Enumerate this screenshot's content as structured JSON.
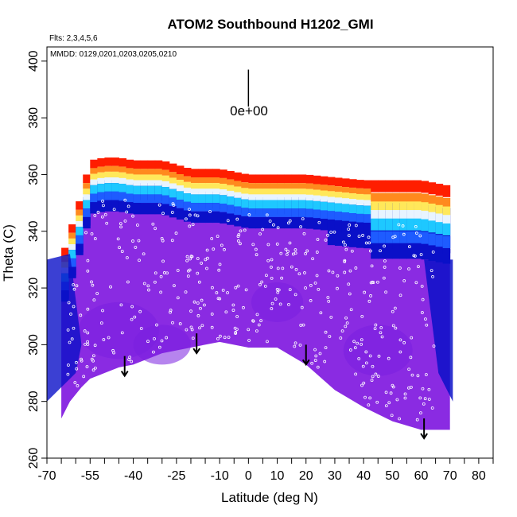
{
  "chart_data": {
    "type": "heatmap",
    "title": "ATOM2 Southbound H1202_GMI",
    "subtitle_flights": "Flts: 2,3,4,5,6",
    "subtitle_dates": "MMDD: 0129,0201,0203,0205,0210",
    "xlabel": "Latitude (deg N)",
    "ylabel": "Theta (C)",
    "xlim": [
      -70,
      85
    ],
    "ylim": [
      260,
      405
    ],
    "x_tick_labels": [
      "-70",
      "-55",
      "-40",
      "-25",
      "-10",
      "0",
      "10",
      "20",
      "30",
      "40",
      "50",
      "60",
      "70",
      "80"
    ],
    "x_tick_values": [
      -70,
      -55,
      -40,
      -25,
      -10,
      0,
      10,
      20,
      30,
      40,
      50,
      60,
      70,
      80
    ],
    "y_tick_labels": [
      "260",
      "280",
      "300",
      "320",
      "340",
      "360",
      "380",
      "400"
    ],
    "y_tick_values": [
      260,
      280,
      300,
      320,
      340,
      360,
      380,
      400
    ],
    "legend_scale_label": "0e+00",
    "legend_scale_value": 0,
    "colors": {
      "background_field": "#8a2be2",
      "dark_blue": "#0a10c8",
      "mid_blue": "#1e5cff",
      "cyan": "#1ec8ff",
      "light": "#e8f4ff",
      "yellow": "#ffe85a",
      "orange": "#ff8a1e",
      "red": "#ff1e00",
      "points": "#ffffff"
    },
    "field_boundary": {
      "lat": [
        -65,
        -62,
        -58,
        -55,
        -50,
        -45,
        -40,
        -30,
        -20,
        -10,
        0,
        10,
        20,
        30,
        40,
        50,
        60,
        70
      ],
      "floor": [
        274,
        280,
        285,
        288,
        290,
        292,
        293,
        297,
        299,
        301,
        299,
        299,
        293,
        284,
        278,
        273,
        270,
        270
      ],
      "top": [
        330,
        340,
        353,
        365,
        366,
        366,
        365,
        365,
        362,
        362,
        360,
        360,
        360,
        359,
        358,
        358,
        358,
        356
      ]
    },
    "bands": [
      {
        "name": "red-top",
        "offset_top": 0,
        "thickness": 3
      },
      {
        "name": "orange",
        "offset_top": 3,
        "thickness": 2
      },
      {
        "name": "yellow",
        "offset_top": 5,
        "thickness": 2
      },
      {
        "name": "light",
        "offset_top": 7,
        "thickness": 2
      },
      {
        "name": "cyan",
        "offset_top": 9,
        "thickness": 3
      },
      {
        "name": "mid-blue",
        "offset_top": 12,
        "thickness": 3
      },
      {
        "name": "dark-blue",
        "offset_top": 15,
        "thickness": 4
      }
    ],
    "arrows": [
      {
        "lat": -43,
        "theta_top": 296,
        "theta_bottom": 289
      },
      {
        "lat": -18,
        "theta_top": 304,
        "theta_bottom": 297
      },
      {
        "lat": 20,
        "theta_top": 300,
        "theta_bottom": 293
      },
      {
        "lat": 61,
        "theta_top": 274,
        "theta_bottom": 267
      }
    ],
    "scale_bar": {
      "lat": 0,
      "theta_top": 397,
      "theta_bottom": 384
    },
    "point_count": 430
  }
}
